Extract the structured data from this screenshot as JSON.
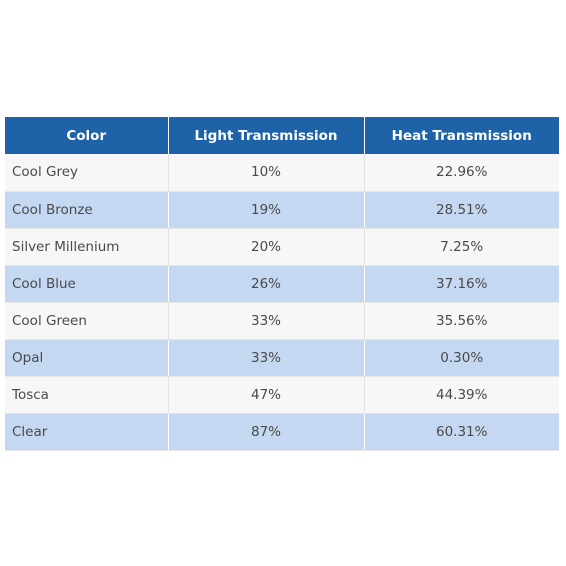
{
  "table": {
    "headers": [
      "Color",
      "Light Transmission",
      "Heat Transmission"
    ],
    "rows": [
      [
        "Cool Grey",
        "10%",
        "22.96%"
      ],
      [
        "Cool Bronze",
        "19%",
        "28.51%"
      ],
      [
        "Silver Millenium",
        "20%",
        "7.25%"
      ],
      [
        "Cool Blue",
        "26%",
        "37.16%"
      ],
      [
        "Cool Green",
        "33%",
        "35.56%"
      ],
      [
        "Opal",
        "33%",
        "0.30%"
      ],
      [
        "Tosca",
        "47%",
        "44.39%"
      ],
      [
        "Clear",
        "87%",
        "60.31%"
      ]
    ]
  },
  "colors": {
    "header_bg": "#1e63a8",
    "header_text": "#ffffff",
    "row_alt_bg": "#c5d8f1",
    "row_bg": "#f7f7f7"
  }
}
